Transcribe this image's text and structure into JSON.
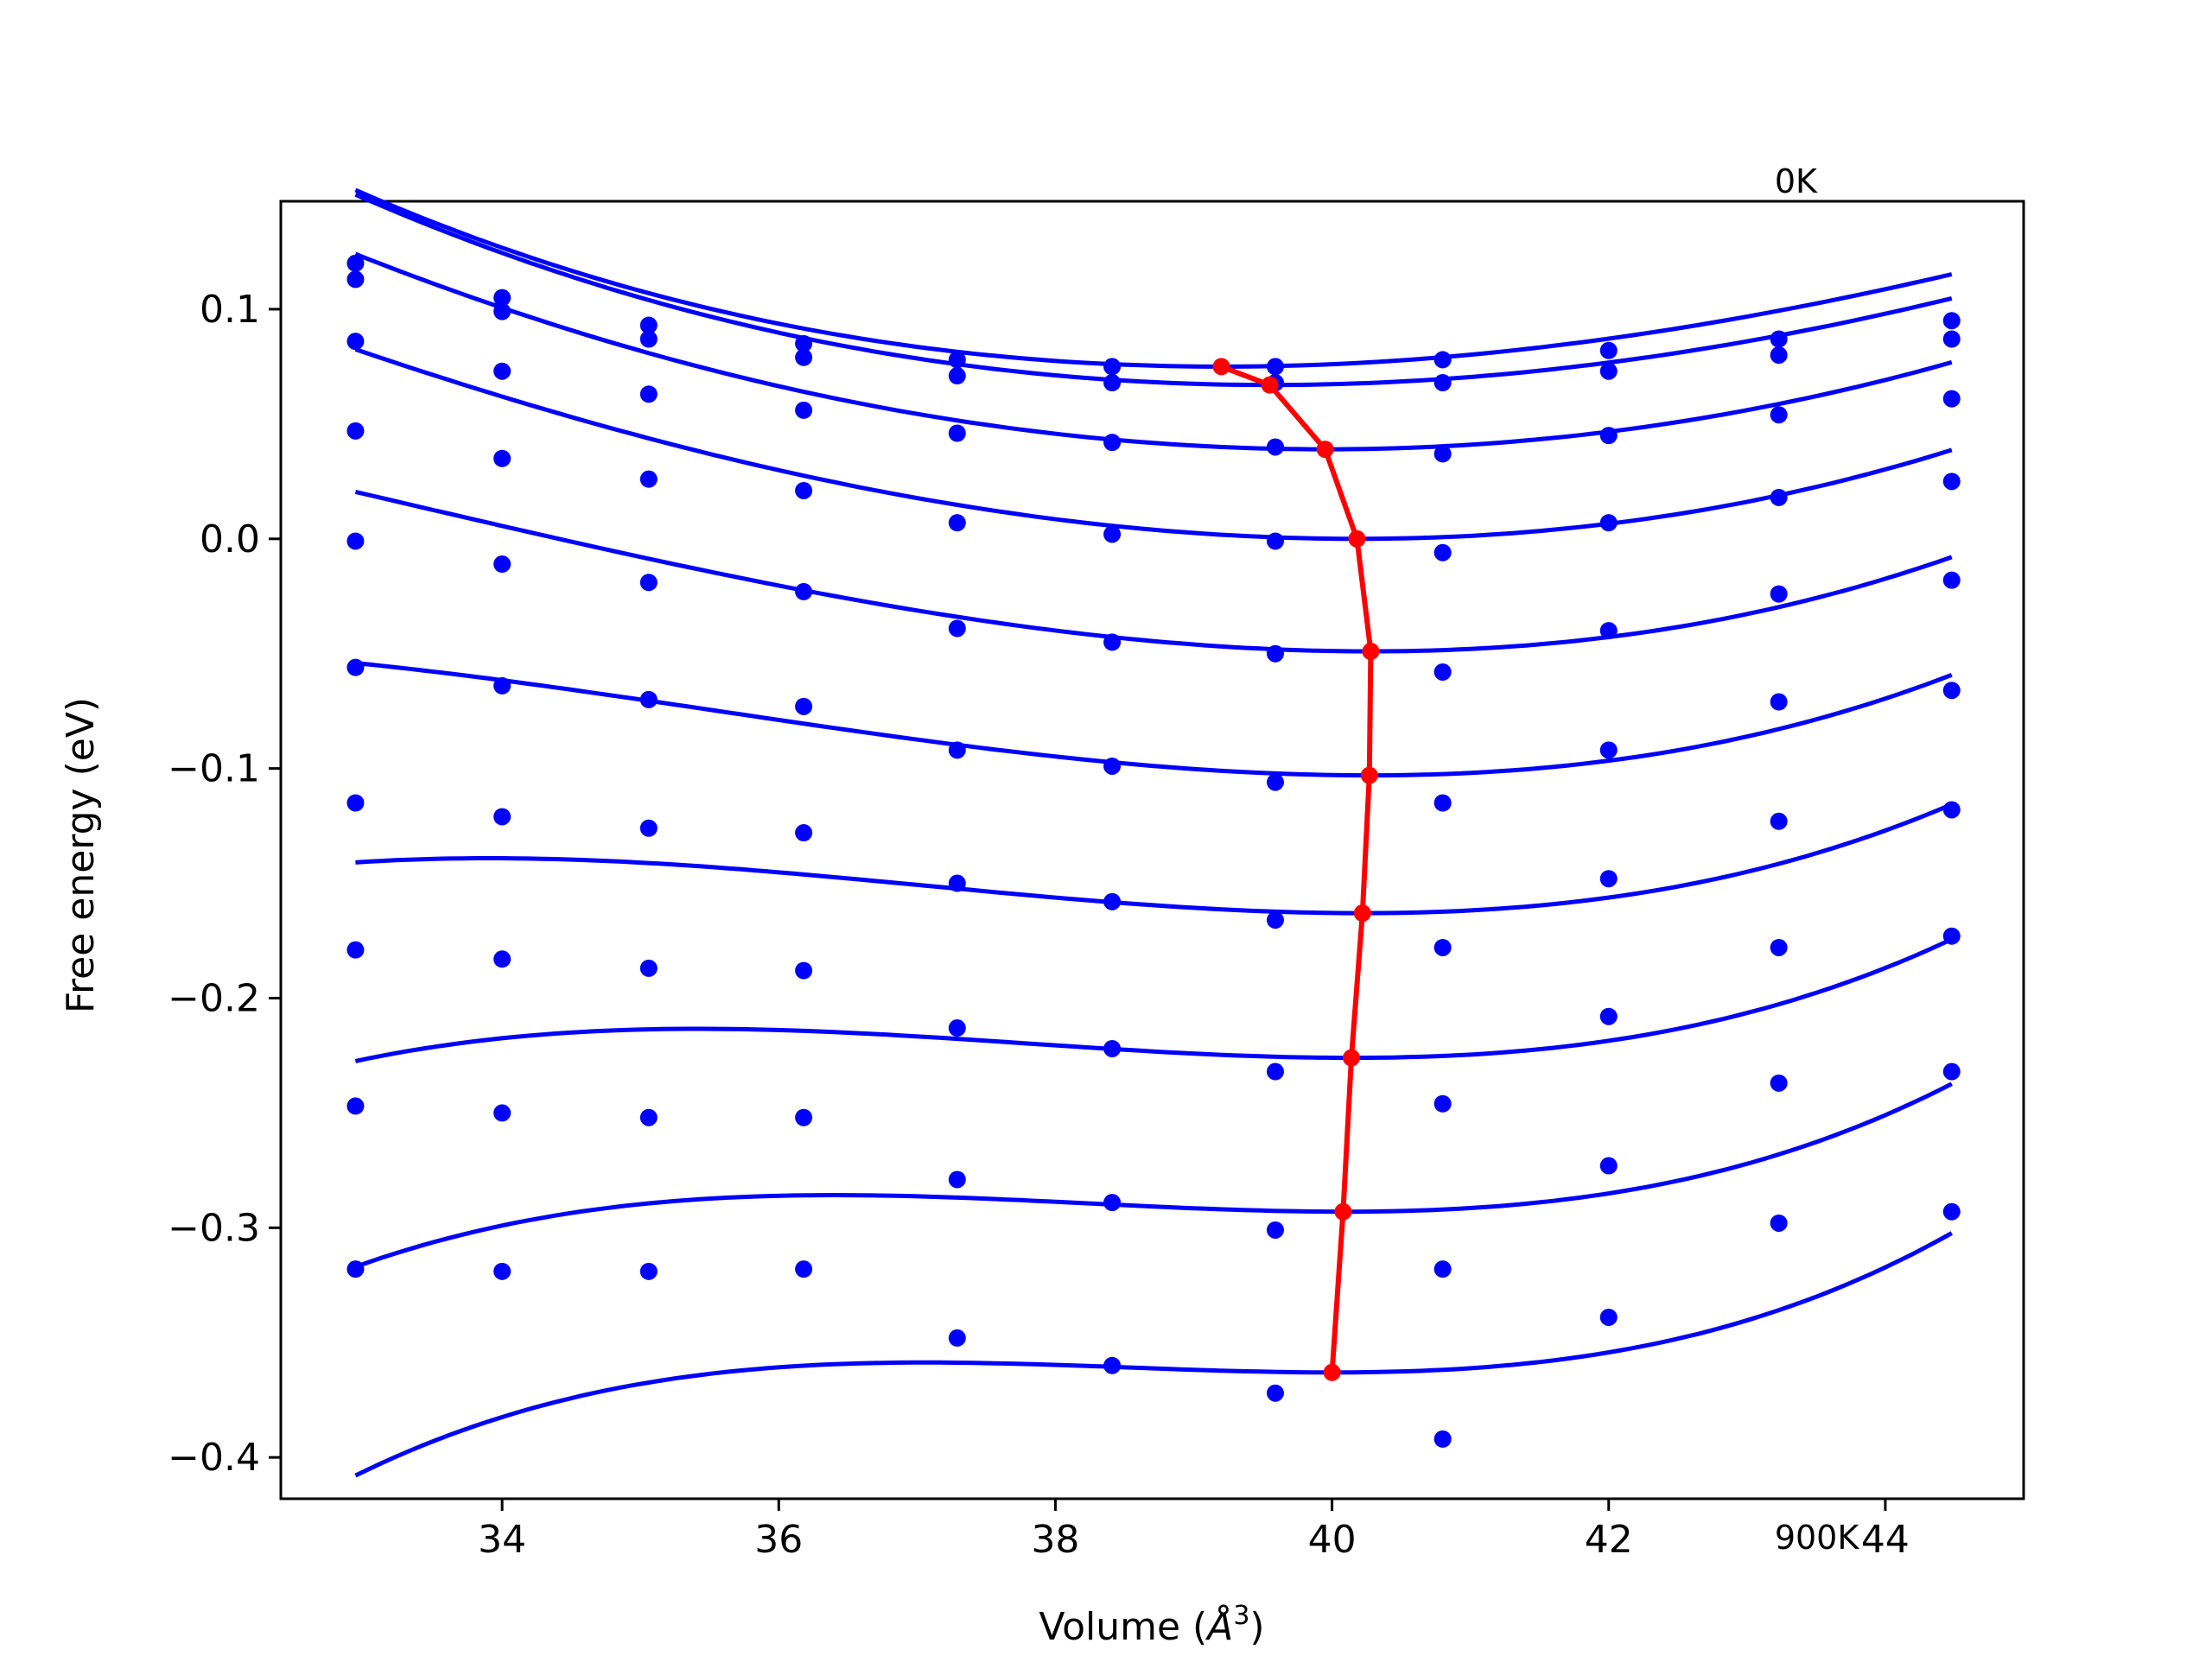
{
  "chart_data": {
    "type": "scatter",
    "title": "",
    "xlabel": "Volume (",
    "xlabel_symbol": "Å",
    "xlabel_sup": "3",
    "xlabel_close": ")",
    "ylabel": "Free energy (eV)",
    "xlim": [
      32.4,
      45.0
    ],
    "ylim": [
      -0.418,
      0.147
    ],
    "xticks": [
      34,
      36,
      38,
      40,
      42,
      44
    ],
    "xtick_labels": [
      "34",
      "36",
      "38",
      "40",
      "42",
      "44"
    ],
    "yticks": [
      0.1,
      0.0,
      -0.1,
      -0.2,
      -0.3,
      -0.4
    ],
    "ytick_labels": [
      "0.1",
      "0.0",
      "−0.1",
      "−0.2",
      "−0.3",
      "−0.4"
    ],
    "annotations": [
      {
        "text": "0K",
        "x": 43.0,
        "y": 0.147
      },
      {
        "text": "900K",
        "x": 43.0,
        "y": -0.425
      }
    ],
    "grid": false,
    "colors": {
      "data": "#0000ff",
      "minimum_path": "#ff0000",
      "axes": "#000000"
    },
    "volumes": [
      32.94,
      34.0,
      35.06,
      36.18,
      37.29,
      38.41,
      39.59,
      40.8,
      42.0,
      43.23,
      44.48
    ],
    "series": [
      {
        "points": [
          0.12,
          0.105,
          0.093,
          0.085,
          0.078,
          0.075,
          0.075,
          0.078,
          0.082,
          0.087,
          0.095
        ]
      },
      {
        "points": [
          0.113,
          0.099,
          0.087,
          0.079,
          0.071,
          0.068,
          0.068,
          0.068,
          0.073,
          0.08,
          0.087
        ]
      },
      {
        "points": [
          0.086,
          0.073,
          0.063,
          0.056,
          0.046,
          0.042,
          0.04,
          0.037,
          0.045,
          0.054,
          0.061
        ]
      },
      {
        "points": [
          0.047,
          0.035,
          0.026,
          0.021,
          0.007,
          0.002,
          -0.001,
          -0.006,
          0.007,
          0.018,
          0.025
        ]
      },
      {
        "points": [
          -0.001,
          -0.011,
          -0.019,
          -0.023,
          -0.039,
          -0.045,
          -0.05,
          -0.058,
          -0.04,
          -0.024,
          -0.018
        ]
      },
      {
        "points": [
          -0.056,
          -0.064,
          -0.07,
          -0.073,
          -0.092,
          -0.099,
          -0.106,
          -0.115,
          -0.092,
          -0.071,
          -0.066
        ]
      },
      {
        "points": [
          -0.115,
          -0.121,
          -0.126,
          -0.128,
          -0.15,
          -0.158,
          -0.166,
          -0.178,
          -0.148,
          -0.123,
          -0.118
        ]
      },
      {
        "points": [
          -0.179,
          -0.183,
          -0.187,
          -0.188,
          -0.213,
          -0.222,
          -0.232,
          -0.246,
          -0.208,
          -0.178,
          -0.173
        ]
      },
      {
        "points": [
          -0.247,
          -0.25,
          -0.252,
          -0.252,
          -0.279,
          -0.289,
          -0.301,
          -0.318,
          -0.273,
          -0.237,
          -0.232
        ]
      },
      {
        "points": [
          -0.318,
          -0.319,
          -0.319,
          -0.318,
          -0.348,
          -0.36,
          -0.372,
          -0.392,
          -0.339,
          -0.298,
          -0.293
        ]
      }
    ],
    "fits": [
      {
        "vmin": 39.2,
        "emin": 0.075,
        "curv": 0.00168,
        "cubic": -4.5e-05
      },
      {
        "vmin": 39.55,
        "emin": 0.067,
        "curv": 0.0017,
        "cubic": -3e-05
      },
      {
        "vmin": 39.95,
        "emin": 0.039,
        "curv": 0.0018,
        "cubic": 1e-05
      },
      {
        "vmin": 40.18,
        "emin": 0.0,
        "curv": 0.0019,
        "cubic": 4.5e-05
      },
      {
        "vmin": 40.28,
        "emin": -0.049,
        "curv": 0.00195,
        "cubic": 9e-05
      },
      {
        "vmin": 40.27,
        "emin": -0.103,
        "curv": 0.0019,
        "cubic": 0.000135
      },
      {
        "vmin": 40.22,
        "emin": -0.163,
        "curv": 0.0018,
        "cubic": 0.00019
      },
      {
        "vmin": 40.14,
        "emin": -0.226,
        "curv": 0.0017,
        "cubic": 0.00024
      },
      {
        "vmin": 40.08,
        "emin": -0.293,
        "curv": 0.0016,
        "cubic": 0.00029
      },
      {
        "vmin": 40.0,
        "emin": -0.363,
        "curv": 0.0015,
        "cubic": 0.00034
      }
    ],
    "minimum_path": {
      "x": [
        39.2,
        39.55,
        39.95,
        40.18,
        40.28,
        40.27,
        40.22,
        40.14,
        40.08,
        40.0
      ],
      "y": [
        0.075,
        0.067,
        0.039,
        0.0,
        -0.049,
        -0.103,
        -0.163,
        -0.226,
        -0.293,
        -0.363
      ]
    }
  }
}
